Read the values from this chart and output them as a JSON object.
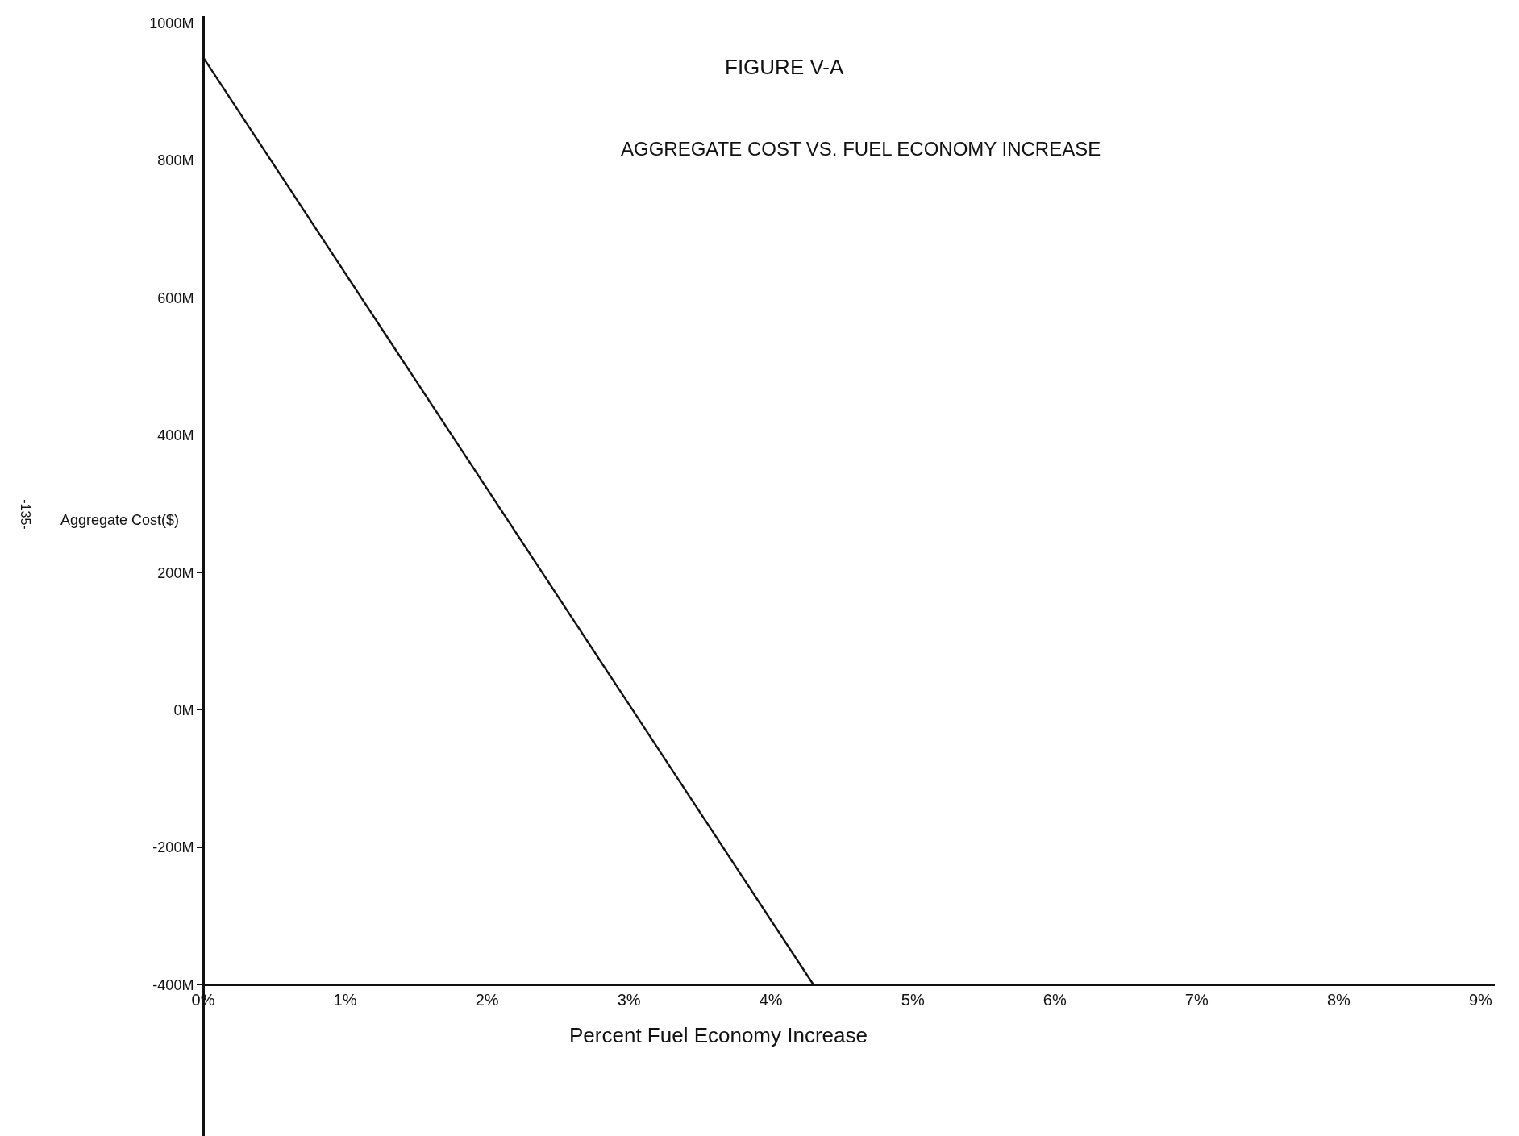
{
  "chart_data": {
    "type": "line",
    "title": "FIGURE V-A",
    "subtitle": "AGGREGATE COST VS. FUEL ECONOMY INCREASE",
    "xlabel": "Percent Fuel Economy Increase",
    "ylabel": "Aggregate Cost($)",
    "annotations": [
      "-135-"
    ],
    "x": [
      0,
      4.3
    ],
    "series": [
      {
        "color": "#111111",
        "values": [
          950,
          -400
        ]
      }
    ],
    "xlim": [
      0,
      9.1
    ],
    "ylim": [
      -620,
      1010
    ],
    "xticks": [
      {
        "value": 0,
        "label": "0%"
      },
      {
        "value": 1,
        "label": "1%"
      },
      {
        "value": 2,
        "label": "2%"
      },
      {
        "value": 3,
        "label": "3%"
      },
      {
        "value": 4,
        "label": "4%"
      },
      {
        "value": 5,
        "label": "5%"
      },
      {
        "value": 6,
        "label": "6%"
      },
      {
        "value": 7,
        "label": "7%"
      },
      {
        "value": 8,
        "label": "8%"
      },
      {
        "value": 9,
        "label": "9%"
      }
    ],
    "yticks": [
      {
        "value": -400,
        "label": "-400M"
      },
      {
        "value": -200,
        "label": "-200M"
      },
      {
        "value": 0,
        "label": "0M"
      },
      {
        "value": 200,
        "label": "200M"
      },
      {
        "value": 400,
        "label": "400M"
      },
      {
        "value": 600,
        "label": "600M"
      },
      {
        "value": 800,
        "label": "800M"
      },
      {
        "value": 1000,
        "label": "1000M"
      }
    ],
    "grid": false,
    "marker": "none",
    "line_style": "solid"
  }
}
